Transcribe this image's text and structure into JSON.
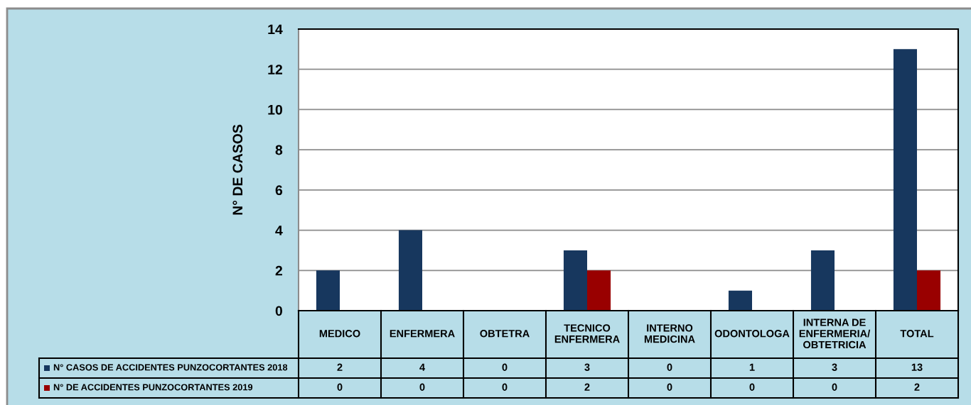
{
  "chart_data": {
    "type": "bar",
    "ylabel": "N° DE CASOS",
    "categories": [
      "MEDICO",
      "ENFERMERA",
      "OBTETRA",
      "TECNICO ENFERMERA",
      "INTERNO MEDICINA",
      "ODONTOLOGA",
      "INTERNA DE ENFERMERIA/ OBTETRICIA",
      "TOTAL"
    ],
    "series": [
      {
        "name": "N° CASOS DE ACCIDENTES PUNZOCORTANTES 2018",
        "color": "#17375e",
        "values": [
          2,
          4,
          0,
          3,
          0,
          1,
          3,
          13
        ]
      },
      {
        "name": "N° DE ACCIDENTES PUNZOCORTANTES 2019",
        "color": "#990000",
        "values": [
          0,
          0,
          0,
          2,
          0,
          0,
          0,
          2
        ]
      }
    ],
    "ylim": [
      0,
      14
    ],
    "yticks": [
      0,
      2,
      4,
      6,
      8,
      10,
      12,
      14
    ],
    "grid": "y",
    "legend": "bottom",
    "data_labels": true
  }
}
